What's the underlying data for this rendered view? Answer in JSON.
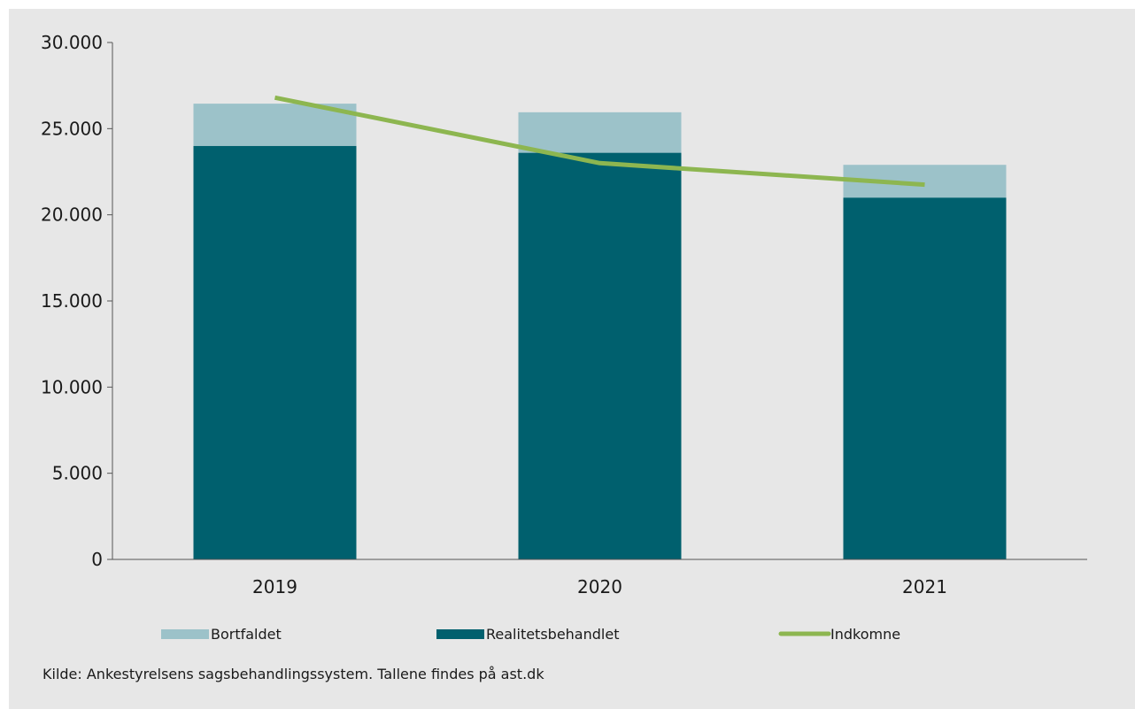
{
  "chart_data": {
    "type": "bar",
    "stacked": true,
    "categories": [
      "2019",
      "2020",
      "2021"
    ],
    "series": [
      {
        "name": "Realitetsbehandlet",
        "kind": "bar",
        "color": "#00606e",
        "values": [
          24000,
          23600,
          21000
        ]
      },
      {
        "name": "Bortfaldet",
        "kind": "bar",
        "color": "#9cc2c9",
        "values": [
          2450,
          2350,
          1900
        ]
      },
      {
        "name": "Indkomne",
        "kind": "line",
        "color": "#8db650",
        "values": [
          26800,
          23000,
          21750
        ]
      }
    ],
    "ylim": [
      0,
      30000
    ],
    "yticks": [
      0,
      5000,
      10000,
      15000,
      20000,
      25000,
      30000
    ],
    "ytick_labels": [
      "0",
      "5.000",
      "10.000",
      "15.000",
      "20.000",
      "25.000",
      "30.000"
    ],
    "grid": false,
    "legend": {
      "position": "bottom",
      "items": [
        {
          "label": "Bortfaldet",
          "color": "#9cc2c9",
          "shape": "box"
        },
        {
          "label": "Realitetsbehandlet",
          "color": "#00606e",
          "shape": "box"
        },
        {
          "label": "Indkomne",
          "color": "#8db650",
          "shape": "line"
        }
      ]
    },
    "source_note": "Kilde:  Ankestyrelsens sagsbehandlingssystem. Tallene findes på ast.dk"
  }
}
